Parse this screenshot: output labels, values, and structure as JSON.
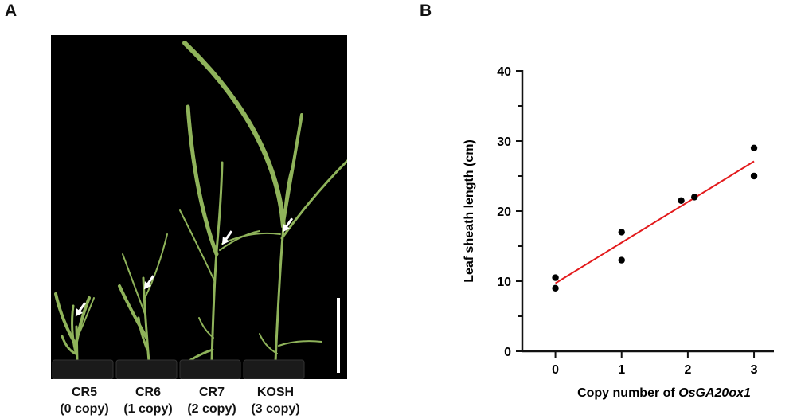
{
  "panels": {
    "a": "A",
    "b": "B"
  },
  "photo": {
    "plants": [
      {
        "name": "CR5",
        "copy": "(0 copy)"
      },
      {
        "name": "CR6",
        "copy": "(1 copy)"
      },
      {
        "name": "CR7",
        "copy": "(2 copy)"
      },
      {
        "name": "KOSH",
        "copy": "(3 copy)"
      }
    ],
    "background": "#000000",
    "leaf_color": "#8fb35a",
    "pot_color": "#1a1a1a"
  },
  "chart_data": {
    "type": "scatter",
    "title": "",
    "xlabel_prefix": "Copy number of ",
    "xlabel_gene": "OsGA20ox1",
    "ylabel": "Leaf sheath length (cm)",
    "xlim": [
      -0.5,
      3.3
    ],
    "ylim": [
      0,
      40
    ],
    "xticks": [
      0,
      1,
      2,
      3
    ],
    "yticks": [
      0,
      10,
      20,
      30,
      40
    ],
    "points": [
      {
        "x": 0,
        "y": 10.5
      },
      {
        "x": 0,
        "y": 9.0
      },
      {
        "x": 1,
        "y": 17.0
      },
      {
        "x": 1,
        "y": 13.0
      },
      {
        "x": 1.9,
        "y": 21.5
      },
      {
        "x": 2.1,
        "y": 22.0
      },
      {
        "x": 3,
        "y": 29.0
      },
      {
        "x": 3,
        "y": 25.0
      }
    ],
    "fit_line": {
      "x": [
        0,
        3
      ],
      "y": [
        9.7,
        27.1
      ],
      "color": "#e31a1c"
    },
    "point_color": "#000000",
    "grid": false
  }
}
